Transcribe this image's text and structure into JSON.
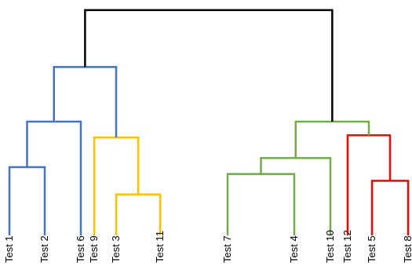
{
  "chart_data": {
    "type": "dendrogram",
    "leaves": [
      "Test 1",
      "Test 2",
      "Test 6",
      "Test 9",
      "Test 3",
      "Test 11",
      "Test 7",
      "Test 4",
      "Test 10",
      "Test 12",
      "Test 5",
      "Test 8"
    ],
    "clusters": [
      {
        "name": "blue",
        "color": "#4472c4",
        "members": [
          "Test 1",
          "Test 2",
          "Test 6"
        ]
      },
      {
        "name": "yellow",
        "color": "#ffc000",
        "members": [
          "Test 9",
          "Test 3",
          "Test 11"
        ]
      },
      {
        "name": "green",
        "color": "#70ad47",
        "members": [
          "Test 7",
          "Test 4",
          "Test 10"
        ]
      },
      {
        "name": "red",
        "color": "#ff0000",
        "members": [
          "Test 12",
          "Test 5",
          "Test 8"
        ]
      }
    ],
    "root_color": "#000000",
    "merges": [
      {
        "a": "Test 1",
        "b": "Test 2",
        "height": 3.0,
        "color": "#4472c4"
      },
      {
        "a": "Test 1+Test 2",
        "b": "Test 6",
        "height": 5.0,
        "color": "#4472c4"
      },
      {
        "a": "Test 3",
        "b": "Test 11",
        "height": 1.8,
        "color": "#ffc000"
      },
      {
        "a": "Test 3+Test 11",
        "b": "Test 9",
        "height": 4.3,
        "color": "#ffc000"
      },
      {
        "a": "blue",
        "b": "yellow",
        "height": 7.4,
        "color": "#4472c4"
      },
      {
        "a": "Test 7",
        "b": "Test 4",
        "height": 2.7,
        "color": "#70ad47"
      },
      {
        "a": "Test 7+Test 4",
        "b": "Test 10",
        "height": 3.4,
        "color": "#70ad47"
      },
      {
        "a": "Test 5",
        "b": "Test 8",
        "height": 2.4,
        "color": "#ff0000"
      },
      {
        "a": "Test 5+Test 8",
        "b": "Test 12",
        "height": 4.4,
        "color": "#ff0000"
      },
      {
        "a": "green",
        "b": "red",
        "height": 5.0,
        "color": "#70ad47"
      },
      {
        "a": "left",
        "b": "right",
        "height": 9.9,
        "color": "#000000"
      }
    ]
  }
}
